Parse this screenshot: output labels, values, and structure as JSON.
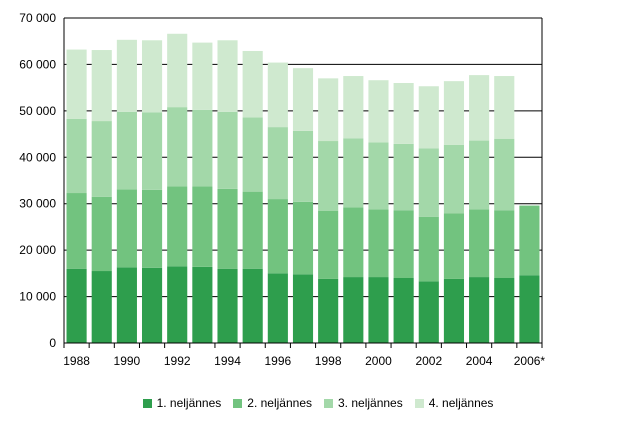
{
  "chart_data": {
    "type": "bar",
    "stacked": true,
    "categories": [
      "1988",
      "1989",
      "1990",
      "1991",
      "1992",
      "1993",
      "1994",
      "1995",
      "1996",
      "1997",
      "1998",
      "1999",
      "2000",
      "2001",
      "2002",
      "2003",
      "2004",
      "2005",
      "2006*"
    ],
    "x_tick_labels": [
      "1988",
      "",
      "1990",
      "",
      "1992",
      "",
      "1994",
      "",
      "1996",
      "",
      "1998",
      "",
      "2000",
      "",
      "2002",
      "",
      "2004",
      "",
      "2006*"
    ],
    "y_tick_labels": [
      "0",
      "10 000",
      "20 000",
      "30 000",
      "40 000",
      "50 000",
      "60 000",
      "70 000"
    ],
    "ylim": [
      0,
      70000
    ],
    "grid": true,
    "legend_position": "bottom",
    "series": [
      {
        "name": "1. neljännes",
        "color": "#2e9e4d",
        "values": [
          16000,
          15500,
          16300,
          16200,
          16500,
          16400,
          16000,
          16000,
          15000,
          14800,
          13800,
          14200,
          14200,
          14000,
          13300,
          13800,
          14200,
          14000,
          14600
        ]
      },
      {
        "name": "2. neljännes",
        "color": "#72c37f",
        "values": [
          16300,
          16000,
          16800,
          16800,
          17200,
          17300,
          17200,
          16600,
          16000,
          15600,
          14700,
          15000,
          14600,
          14600,
          13900,
          14100,
          14600,
          14600,
          15000
        ]
      },
      {
        "name": "3. neljännes",
        "color": "#a3d8a9",
        "values": [
          16000,
          16300,
          16700,
          16700,
          17100,
          16500,
          16600,
          16000,
          15500,
          15300,
          15000,
          14900,
          14400,
          14300,
          14700,
          14800,
          14800,
          15400,
          0
        ]
      },
      {
        "name": "4. neljännes",
        "color": "#cfe9cf",
        "values": [
          14900,
          15300,
          15500,
          15500,
          15800,
          14500,
          15400,
          14300,
          13900,
          13500,
          13500,
          13400,
          13400,
          13100,
          13400,
          13700,
          14100,
          13500,
          0
        ]
      }
    ]
  }
}
